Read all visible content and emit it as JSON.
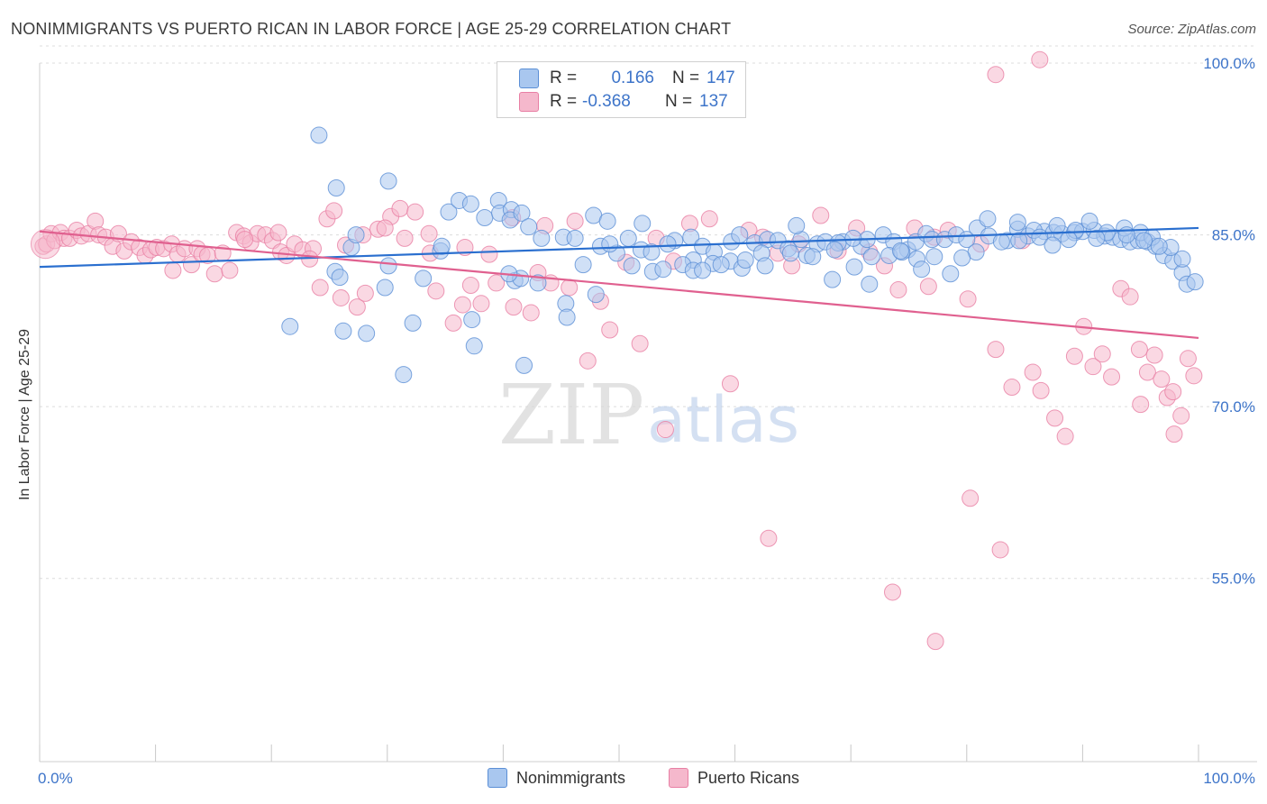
{
  "title": "NONIMMIGRANTS VS PUERTO RICAN IN LABOR FORCE | AGE 25-29 CORRELATION CHART",
  "source": "Source: ZipAtlas.com",
  "watermark": {
    "zip": "ZIP",
    "atlas": "atlas"
  },
  "colors": {
    "blue": "#5b8fd6",
    "blue_fill": "#a9c7ef",
    "blue_line": "#2a6fcf",
    "pink": "#e87fa4",
    "pink_fill": "#f5b8cc",
    "pink_line": "#e0608f",
    "value_text": "#3d74c9"
  },
  "legend_top": {
    "rows": [
      {
        "r_label": "R =",
        "r_value": "0.166",
        "n_label": "N =",
        "n_value": "147"
      },
      {
        "r_label": "R =",
        "r_value": "-0.368",
        "n_label": "N =",
        "n_value": "137"
      }
    ]
  },
  "legend_bottom": {
    "series_a": "Nonimmigrants",
    "series_b": "Puerto Ricans"
  },
  "chart_data": {
    "type": "scatter",
    "title": "NONIMMIGRANTS VS PUERTO RICAN IN LABOR FORCE | AGE 25-29 CORRELATION CHART",
    "xlabel": "",
    "ylabel": "In Labor Force | Age 25-29",
    "xlim": [
      0,
      100
    ],
    "ylim": [
      39,
      100
    ],
    "x_tick_labels": [
      "0.0%",
      "100.0%"
    ],
    "y_ticks": [
      55,
      70,
      85,
      100
    ],
    "y_tick_labels": [
      "55.0%",
      "70.0%",
      "85.0%",
      "100.0%"
    ],
    "grid": true,
    "series": [
      {
        "name": "Nonimmigrants",
        "r": 0.166,
        "n": 147,
        "trend": {
          "x": [
            0,
            100
          ],
          "y": [
            82.2,
            85.6
          ]
        },
        "points": [
          [
            24.1,
            93.7
          ],
          [
            25.6,
            89.1
          ],
          [
            30.1,
            89.7
          ],
          [
            35.3,
            87.0
          ],
          [
            36.2,
            88.0
          ],
          [
            37.2,
            87.7
          ],
          [
            38.4,
            86.5
          ],
          [
            39.6,
            88.0
          ],
          [
            39.7,
            86.9
          ],
          [
            40.7,
            87.2
          ],
          [
            40.6,
            86.3
          ],
          [
            41.6,
            86.9
          ],
          [
            42.2,
            85.7
          ],
          [
            47.8,
            86.7
          ],
          [
            43.3,
            84.7
          ],
          [
            45.2,
            84.8
          ],
          [
            46.2,
            84.7
          ],
          [
            49.0,
            86.2
          ],
          [
            50.8,
            84.7
          ],
          [
            51.9,
            83.7
          ],
          [
            52.8,
            83.5
          ],
          [
            54.8,
            84.5
          ],
          [
            56.2,
            84.8
          ],
          [
            57.2,
            84.0
          ],
          [
            58.2,
            83.5
          ],
          [
            59.7,
            84.4
          ],
          [
            60.4,
            85.0
          ],
          [
            61.7,
            84.3
          ],
          [
            62.8,
            84.6
          ],
          [
            63.7,
            84.5
          ],
          [
            64.6,
            83.8
          ],
          [
            65.7,
            84.6
          ],
          [
            67.1,
            84.2
          ],
          [
            67.8,
            84.4
          ],
          [
            69.3,
            84.4
          ],
          [
            70.9,
            84.0
          ],
          [
            71.4,
            84.6
          ],
          [
            72.8,
            85.0
          ],
          [
            73.7,
            84.4
          ],
          [
            74.9,
            83.7
          ],
          [
            75.6,
            84.4
          ],
          [
            76.5,
            85.1
          ],
          [
            77.0,
            84.6
          ],
          [
            78.1,
            84.6
          ],
          [
            79.1,
            85.0
          ],
          [
            80.0,
            84.6
          ],
          [
            80.9,
            85.6
          ],
          [
            81.9,
            84.9
          ],
          [
            83.5,
            84.5
          ],
          [
            84.4,
            85.5
          ],
          [
            85.3,
            84.9
          ],
          [
            86.7,
            85.3
          ],
          [
            87.5,
            85.2
          ],
          [
            88.2,
            85.1
          ],
          [
            89.3,
            85.2
          ],
          [
            90.0,
            85.3
          ],
          [
            91.0,
            85.4
          ],
          [
            91.9,
            84.9
          ],
          [
            92.6,
            84.8
          ],
          [
            93.3,
            84.6
          ],
          [
            94.1,
            84.4
          ],
          [
            94.8,
            84.5
          ],
          [
            95.6,
            84.4
          ],
          [
            96.3,
            84.0
          ],
          [
            97.0,
            83.2
          ],
          [
            97.8,
            82.7
          ],
          [
            98.6,
            81.7
          ],
          [
            99.0,
            80.7
          ],
          [
            99.7,
            80.9
          ],
          [
            80.8,
            83.5
          ],
          [
            81.8,
            86.4
          ],
          [
            84.4,
            86.1
          ],
          [
            85.8,
            85.4
          ],
          [
            87.8,
            85.8
          ],
          [
            89.4,
            85.4
          ],
          [
            90.6,
            86.2
          ],
          [
            92.1,
            85.2
          ],
          [
            93.6,
            85.6
          ],
          [
            95.0,
            85.2
          ],
          [
            96.0,
            84.8
          ],
          [
            97.6,
            83.9
          ],
          [
            98.6,
            82.9
          ],
          [
            52.0,
            86.0
          ],
          [
            54.2,
            84.2
          ],
          [
            56.4,
            82.8
          ],
          [
            58.1,
            82.5
          ],
          [
            59.6,
            82.7
          ],
          [
            60.6,
            82.1
          ],
          [
            62.3,
            83.4
          ],
          [
            64.8,
            83.4
          ],
          [
            66.2,
            83.2
          ],
          [
            68.4,
            81.1
          ],
          [
            68.9,
            84.3
          ],
          [
            70.3,
            82.2
          ],
          [
            71.8,
            83.1
          ],
          [
            73.3,
            83.2
          ],
          [
            74.4,
            83.5
          ],
          [
            75.7,
            82.9
          ],
          [
            77.2,
            83.1
          ],
          [
            78.6,
            81.6
          ],
          [
            79.6,
            83.0
          ],
          [
            83.0,
            84.4
          ],
          [
            84.5,
            84.5
          ],
          [
            86.3,
            84.8
          ],
          [
            87.4,
            84.1
          ],
          [
            88.8,
            84.6
          ],
          [
            91.2,
            84.7
          ],
          [
            93.8,
            85.0
          ],
          [
            95.3,
            84.5
          ],
          [
            96.6,
            84.0
          ],
          [
            46.9,
            82.4
          ],
          [
            48.4,
            84.0
          ],
          [
            49.8,
            83.4
          ],
          [
            51.1,
            82.3
          ],
          [
            52.9,
            81.8
          ],
          [
            53.8,
            82.0
          ],
          [
            55.5,
            82.4
          ],
          [
            56.4,
            81.9
          ],
          [
            57.2,
            81.9
          ],
          [
            58.8,
            82.4
          ],
          [
            60.9,
            82.8
          ],
          [
            62.6,
            82.3
          ],
          [
            65.3,
            85.8
          ],
          [
            66.7,
            83.1
          ],
          [
            68.6,
            83.7
          ],
          [
            70.2,
            84.7
          ],
          [
            71.6,
            80.7
          ],
          [
            74.3,
            83.6
          ],
          [
            76.1,
            82.0
          ],
          [
            25.5,
            81.8
          ],
          [
            25.9,
            81.3
          ],
          [
            26.9,
            83.9
          ],
          [
            27.3,
            85.0
          ],
          [
            29.8,
            80.4
          ],
          [
            30.1,
            82.3
          ],
          [
            32.2,
            77.3
          ],
          [
            33.1,
            81.2
          ],
          [
            34.6,
            83.6
          ],
          [
            37.5,
            75.3
          ],
          [
            41.0,
            81.0
          ],
          [
            41.5,
            81.2
          ],
          [
            43.0,
            80.8
          ],
          [
            45.4,
            79.0
          ],
          [
            48.0,
            79.8
          ],
          [
            21.6,
            77.0
          ],
          [
            26.2,
            76.6
          ],
          [
            28.2,
            76.4
          ],
          [
            31.4,
            72.8
          ],
          [
            37.3,
            77.6
          ],
          [
            41.8,
            73.6
          ],
          [
            45.5,
            77.8
          ],
          [
            40.5,
            81.6
          ],
          [
            49.2,
            84.2
          ],
          [
            34.7,
            84.0
          ]
        ]
      },
      {
        "name": "Puerto Ricans",
        "r": -0.368,
        "n": 137,
        "trend": {
          "x": [
            0,
            100
          ],
          "y": [
            85.3,
            76.0
          ]
        },
        "points": [
          [
            0.3,
            84.0
          ],
          [
            0.6,
            84.2
          ],
          [
            1.0,
            85.1
          ],
          [
            1.3,
            84.5
          ],
          [
            1.8,
            85.2
          ],
          [
            2.1,
            84.7
          ],
          [
            2.6,
            84.7
          ],
          [
            3.2,
            85.4
          ],
          [
            3.6,
            84.9
          ],
          [
            4.2,
            85.1
          ],
          [
            4.8,
            86.2
          ],
          [
            5.1,
            85.0
          ],
          [
            5.7,
            84.8
          ],
          [
            6.3,
            84.0
          ],
          [
            6.8,
            85.1
          ],
          [
            7.3,
            83.6
          ],
          [
            7.9,
            84.4
          ],
          [
            8.6,
            83.9
          ],
          [
            9.1,
            83.2
          ],
          [
            9.6,
            83.7
          ],
          [
            10.1,
            83.9
          ],
          [
            10.7,
            83.8
          ],
          [
            11.4,
            84.2
          ],
          [
            11.9,
            83.3
          ],
          [
            12.5,
            83.8
          ],
          [
            13.1,
            82.4
          ],
          [
            13.6,
            83.8
          ],
          [
            14.0,
            83.3
          ],
          [
            14.5,
            83.2
          ],
          [
            15.1,
            81.6
          ],
          [
            15.8,
            83.4
          ],
          [
            16.4,
            81.9
          ],
          [
            17.0,
            85.2
          ],
          [
            17.6,
            84.9
          ],
          [
            18.2,
            84.3
          ],
          [
            18.8,
            85.1
          ],
          [
            19.5,
            85.0
          ],
          [
            20.1,
            84.5
          ],
          [
            20.8,
            83.5
          ],
          [
            21.3,
            83.2
          ],
          [
            22.0,
            84.2
          ],
          [
            22.7,
            83.7
          ],
          [
            23.6,
            83.8
          ],
          [
            24.2,
            80.4
          ],
          [
            24.8,
            86.4
          ],
          [
            25.4,
            87.1
          ],
          [
            26.4,
            84.1
          ],
          [
            27.4,
            78.7
          ],
          [
            28.1,
            79.9
          ],
          [
            29.2,
            85.5
          ],
          [
            30.3,
            86.6
          ],
          [
            31.1,
            87.3
          ],
          [
            32.4,
            87.0
          ],
          [
            33.6,
            85.1
          ],
          [
            34.2,
            80.1
          ],
          [
            35.7,
            77.3
          ],
          [
            36.5,
            78.9
          ],
          [
            37.2,
            80.6
          ],
          [
            38.1,
            79.0
          ],
          [
            39.4,
            80.8
          ],
          [
            40.9,
            78.7
          ],
          [
            42.4,
            78.2
          ],
          [
            43.0,
            81.7
          ],
          [
            44.1,
            80.8
          ],
          [
            45.7,
            80.4
          ],
          [
            47.3,
            74.0
          ],
          [
            48.4,
            79.2
          ],
          [
            49.2,
            76.7
          ],
          [
            50.6,
            82.6
          ],
          [
            51.8,
            75.5
          ],
          [
            53.2,
            84.7
          ],
          [
            54.7,
            82.7
          ],
          [
            56.1,
            86.0
          ],
          [
            57.8,
            86.4
          ],
          [
            59.6,
            72.0
          ],
          [
            61.2,
            85.4
          ],
          [
            62.4,
            84.8
          ],
          [
            63.7,
            83.4
          ],
          [
            64.9,
            82.3
          ],
          [
            65.5,
            84.2
          ],
          [
            67.4,
            86.7
          ],
          [
            68.9,
            83.6
          ],
          [
            70.5,
            85.6
          ],
          [
            71.6,
            83.5
          ],
          [
            72.9,
            82.3
          ],
          [
            74.1,
            80.2
          ],
          [
            75.5,
            85.6
          ],
          [
            76.7,
            80.5
          ],
          [
            77.2,
            84.8
          ],
          [
            78.4,
            85.4
          ],
          [
            80.1,
            79.4
          ],
          [
            81.2,
            84.2
          ],
          [
            82.5,
            75.0
          ],
          [
            83.9,
            71.7
          ],
          [
            84.8,
            84.5
          ],
          [
            85.7,
            73.0
          ],
          [
            86.4,
            71.4
          ],
          [
            87.6,
            69.0
          ],
          [
            88.5,
            67.4
          ],
          [
            89.3,
            74.4
          ],
          [
            90.1,
            77.0
          ],
          [
            90.9,
            73.5
          ],
          [
            91.7,
            74.6
          ],
          [
            92.5,
            72.6
          ],
          [
            93.3,
            80.3
          ],
          [
            94.1,
            79.6
          ],
          [
            94.9,
            75.0
          ],
          [
            95.6,
            73.0
          ],
          [
            96.2,
            74.5
          ],
          [
            96.8,
            72.4
          ],
          [
            97.3,
            70.8
          ],
          [
            97.9,
            67.6
          ],
          [
            98.5,
            69.2
          ],
          [
            99.1,
            74.2
          ],
          [
            99.6,
            72.7
          ],
          [
            11.5,
            81.9
          ],
          [
            17.7,
            84.6
          ],
          [
            20.6,
            85.2
          ],
          [
            23.3,
            82.9
          ],
          [
            26.0,
            79.5
          ],
          [
            27.9,
            85.0
          ],
          [
            29.8,
            85.6
          ],
          [
            31.5,
            84.7
          ],
          [
            33.7,
            83.4
          ],
          [
            36.7,
            83.9
          ],
          [
            38.8,
            83.3
          ],
          [
            40.8,
            86.5
          ],
          [
            43.6,
            85.8
          ],
          [
            46.2,
            86.2
          ],
          [
            54.0,
            68.0
          ],
          [
            62.9,
            58.5
          ],
          [
            73.6,
            53.8
          ],
          [
            77.3,
            49.5
          ],
          [
            80.3,
            62.0
          ],
          [
            82.9,
            57.5
          ],
          [
            82.5,
            99.0
          ],
          [
            86.3,
            100.3
          ],
          [
            95.0,
            70.2
          ],
          [
            97.8,
            71.3
          ]
        ]
      }
    ]
  }
}
